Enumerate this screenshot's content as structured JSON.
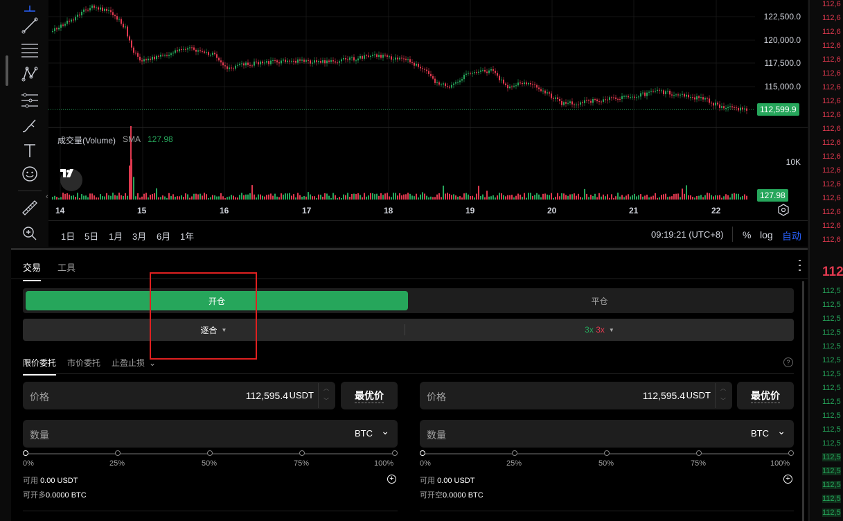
{
  "chart": {
    "y_ticks": [
      "122,500.0",
      "120,000.0",
      "117,500.0",
      "115,000.0"
    ],
    "last_price": "112,599.9",
    "volume_label": "成交量(Volume)",
    "volume_sma_label": "SMA",
    "volume_sma_value": "127.98",
    "volume_tick": "10K",
    "volume_tag": "127.98",
    "x_ticks": [
      "14",
      "15",
      "16",
      "17",
      "18",
      "19",
      "20",
      "21",
      "22"
    ],
    "time_display": "09:19:21 (UTC+8)",
    "percent_label": "%",
    "log_label": "log",
    "auto_label": "自动"
  },
  "ranges": [
    "1日",
    "5日",
    "1月",
    "3月",
    "6月",
    "1年"
  ],
  "orderbook": {
    "ask_prefix": "112,6",
    "mid_prefix": "112",
    "bid_prefix": "112,5",
    "ask_color": "#e0394f",
    "bid_color": "#26a65b"
  },
  "panel": {
    "tabs": [
      "交易",
      "工具"
    ],
    "open_label": "开仓",
    "close_label": "平仓",
    "margin_mode": "逐合",
    "leverage_long": "3x",
    "leverage_short": "3x",
    "order_types": [
      "限价委托",
      "市价委托",
      "止盈止损"
    ],
    "buy": {
      "price_label": "价格",
      "price_value": "112,595.4",
      "price_unit": "USDT",
      "best_label": "最优价",
      "qty_label": "数量",
      "qty_unit": "BTC",
      "pcts": [
        "0%",
        "25%",
        "50%",
        "75%",
        "100%"
      ],
      "avail_label": "可用",
      "avail_value": "0.00 USDT",
      "max_label": "可开多",
      "max_value": "0.0000 BTC"
    },
    "sell": {
      "price_label": "价格",
      "price_value": "112,595.4",
      "price_unit": "USDT",
      "best_label": "最优价",
      "qty_label": "数量",
      "qty_unit": "BTC",
      "pcts": [
        "0%",
        "25%",
        "50%",
        "75%",
        "100%"
      ],
      "avail_label": "可用",
      "avail_value": "0.00 USDT",
      "max_label": "可开空",
      "max_value": "0.0000 BTC"
    }
  },
  "colors": {
    "accent_green": "#26a65b",
    "accent_red": "#e0394f",
    "accent_blue": "#2962ff",
    "highlight_box": "#e02020"
  }
}
